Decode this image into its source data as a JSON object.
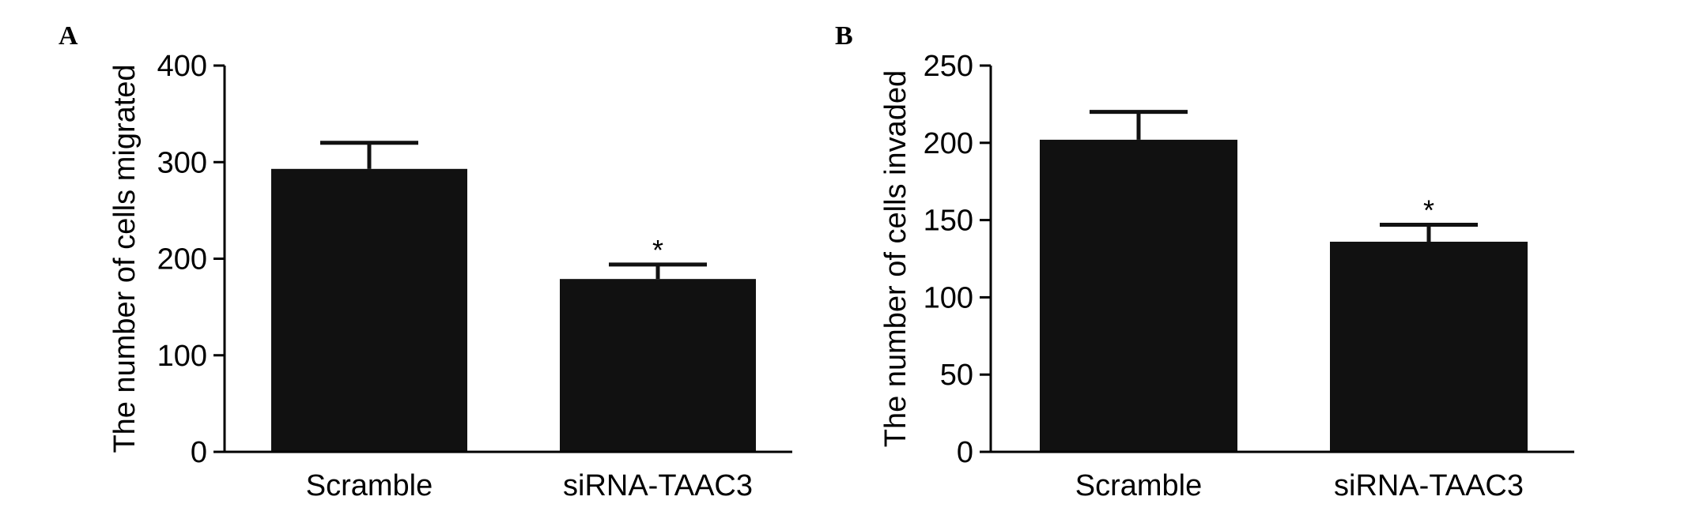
{
  "colors": {
    "bar": "#111111",
    "axis": "#000000",
    "background": "#ffffff"
  },
  "chart_data": [
    {
      "type": "bar",
      "panel": "A",
      "title": "",
      "xlabel": "",
      "ylabel": "The number of cells migrated",
      "ylim": [
        0,
        400
      ],
      "yticks": [
        0,
        100,
        200,
        300,
        400
      ],
      "ytick_labels": [
        "0",
        "100",
        "200",
        "300",
        "400"
      ],
      "categories": [
        "Scramble",
        "siRNA-TAAC3"
      ],
      "values": [
        293,
        179
      ],
      "error": [
        27,
        15
      ],
      "significance": [
        "",
        "*"
      ],
      "grid": false,
      "legend": "none"
    },
    {
      "type": "bar",
      "panel": "B",
      "title": "",
      "xlabel": "",
      "ylabel": "The number of cells invaded",
      "ylim": [
        0,
        250
      ],
      "yticks": [
        0,
        50,
        100,
        150,
        200,
        250
      ],
      "ytick_labels": [
        "0",
        "50",
        "100",
        "150",
        "200",
        "250"
      ],
      "categories": [
        "Scramble",
        "siRNA-TAAC3"
      ],
      "values": [
        202,
        136
      ],
      "error": [
        18,
        11
      ],
      "significance": [
        "",
        "*"
      ],
      "grid": false,
      "legend": "none"
    }
  ]
}
